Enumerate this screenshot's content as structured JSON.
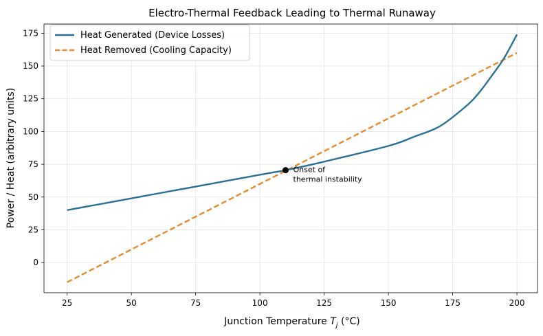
{
  "chart_data": {
    "type": "line",
    "title": "Electro-Thermal Feedback Leading to Thermal Runaway",
    "xlabel_main": "Junction Temperature ",
    "xlabel_var": "T",
    "xlabel_sub": "j",
    "xlabel_unit": " (°C)",
    "ylabel": "Power / Heat (arbitrary units)",
    "xlim": [
      16,
      208
    ],
    "ylim": [
      -23,
      182
    ],
    "xticks": [
      25,
      50,
      75,
      100,
      125,
      150,
      175,
      200
    ],
    "yticks": [
      0,
      25,
      50,
      75,
      100,
      125,
      150,
      175
    ],
    "grid": true,
    "legend_position": "top-left",
    "series": [
      {
        "name": "Heat Generated (Device Losses)",
        "color": "#2a7095",
        "style": "solid",
        "x": [
          25,
          50,
          75,
          100,
          110,
          125,
          150,
          160,
          170,
          180,
          185,
          190,
          195,
          200
        ],
        "y": [
          40,
          49,
          58,
          67,
          70.5,
          77,
          89,
          96,
          104,
          119,
          129,
          142,
          156,
          174
        ]
      },
      {
        "name": "Heat Removed (Cooling Capacity)",
        "color": "#e38b2d",
        "style": "dashed",
        "x": [
          25,
          200
        ],
        "y": [
          -15,
          160
        ]
      }
    ],
    "annotation": {
      "x": 110,
      "y": 70.5,
      "lines": [
        "Onset of",
        "thermal instability"
      ]
    }
  }
}
